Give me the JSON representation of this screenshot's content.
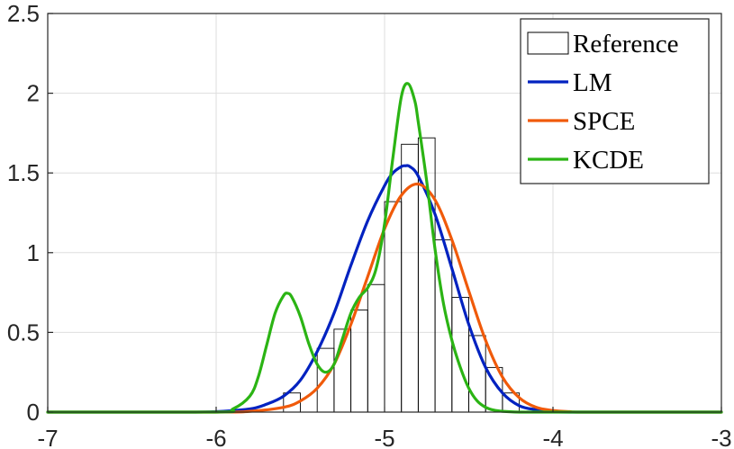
{
  "chart_data": {
    "type": "line",
    "title": "",
    "xlabel": "",
    "ylabel": "",
    "xlim": [
      -7,
      -3
    ],
    "ylim": [
      0,
      2.5
    ],
    "xticks": [
      -7,
      -6,
      -5,
      -4,
      -3
    ],
    "yticks": [
      0,
      0.5,
      1,
      1.5,
      2,
      2.5
    ],
    "xtick_labels": [
      "-7",
      "-6",
      "-5",
      "-4",
      "-3"
    ],
    "ytick_labels": [
      "0",
      "0.5",
      "1",
      "1.5",
      "2",
      "2.5"
    ],
    "grid": true,
    "legend_position": "top-right",
    "histogram": {
      "name": "Reference",
      "bin_width": 0.1,
      "bin_edges": [
        -5.6,
        -5.5,
        -5.4,
        -5.3,
        -5.2,
        -5.1,
        -5.0,
        -4.9,
        -4.8,
        -4.7,
        -4.6,
        -4.5,
        -4.4,
        -4.3,
        -4.2,
        -4.1
      ],
      "values": [
        0.12,
        0.0,
        0.4,
        0.52,
        0.64,
        0.8,
        1.32,
        1.68,
        1.72,
        1.08,
        0.72,
        0.48,
        0.28,
        0.12,
        0.0
      ]
    },
    "series": [
      {
        "name": "LM",
        "color": "#0022c0",
        "x": [
          -7.0,
          -6.2,
          -6.0,
          -5.8,
          -5.7,
          -5.6,
          -5.5,
          -5.4,
          -5.3,
          -5.2,
          -5.1,
          -5.0,
          -4.95,
          -4.9,
          -4.875,
          -4.85,
          -4.8,
          -4.7,
          -4.6,
          -4.5,
          -4.4,
          -4.3,
          -4.2,
          -4.1,
          -4.0,
          -3.9,
          -3.0
        ],
        "values": [
          0.0,
          0.0,
          0.003,
          0.02,
          0.05,
          0.1,
          0.2,
          0.38,
          0.62,
          0.92,
          1.2,
          1.42,
          1.5,
          1.54,
          1.545,
          1.54,
          1.48,
          1.24,
          0.9,
          0.55,
          0.28,
          0.12,
          0.04,
          0.015,
          0.005,
          0.0,
          0.0
        ]
      },
      {
        "name": "SPCE",
        "color": "#f05a0a",
        "x": [
          -7.0,
          -6.0,
          -5.8,
          -5.6,
          -5.5,
          -5.4,
          -5.3,
          -5.2,
          -5.1,
          -5.0,
          -4.9,
          -4.8,
          -4.7,
          -4.6,
          -4.5,
          -4.4,
          -4.3,
          -4.2,
          -4.1,
          -4.0,
          -3.9,
          -3.8,
          -3.0
        ],
        "values": [
          0.0,
          0.0,
          0.005,
          0.03,
          0.07,
          0.15,
          0.3,
          0.55,
          0.85,
          1.15,
          1.36,
          1.43,
          1.33,
          1.08,
          0.76,
          0.45,
          0.22,
          0.09,
          0.03,
          0.01,
          0.003,
          0.0,
          0.0
        ]
      },
      {
        "name": "KCDE",
        "color": "#2bb414",
        "x": [
          -7.0,
          -6.0,
          -5.9,
          -5.8,
          -5.75,
          -5.7,
          -5.65,
          -5.6,
          -5.575,
          -5.55,
          -5.5,
          -5.45,
          -5.4,
          -5.35,
          -5.3,
          -5.25,
          -5.2,
          -5.15,
          -5.1,
          -5.05,
          -5.0,
          -4.95,
          -4.9,
          -4.86,
          -4.82,
          -4.8,
          -4.75,
          -4.7,
          -4.65,
          -4.6,
          -4.55,
          -4.5,
          -4.45,
          -4.4,
          -4.35,
          -4.3,
          -4.2,
          -4.1,
          -4.0,
          -3.0
        ],
        "values": [
          0.0,
          0.0,
          0.02,
          0.1,
          0.22,
          0.42,
          0.62,
          0.73,
          0.745,
          0.72,
          0.6,
          0.43,
          0.3,
          0.25,
          0.3,
          0.46,
          0.62,
          0.72,
          0.78,
          0.9,
          1.18,
          1.6,
          1.98,
          2.06,
          1.95,
          1.82,
          1.45,
          1.02,
          0.68,
          0.45,
          0.28,
          0.15,
          0.07,
          0.03,
          0.012,
          0.005,
          0.0,
          0.0,
          0.0,
          0.0
        ]
      }
    ]
  }
}
